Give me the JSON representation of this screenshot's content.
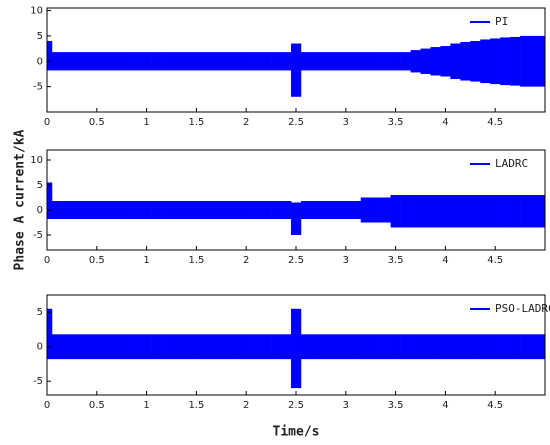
{
  "chart_data": [
    {
      "type": "band",
      "legend": "upper right",
      "x": [
        0,
        0.1,
        0.2,
        0.3,
        0.4,
        0.5,
        0.6,
        0.7,
        0.8,
        0.9,
        1,
        1.1,
        1.2,
        1.3,
        1.4,
        1.5,
        1.6,
        1.7,
        1.8,
        1.9,
        2,
        2.1,
        2.2,
        2.3,
        2.4,
        2.5,
        2.6,
        2.7,
        2.8,
        2.9,
        3,
        3.1,
        3.2,
        3.3,
        3.4,
        3.5,
        3.6,
        3.7,
        3.8,
        3.9,
        4,
        4.1,
        4.2,
        4.3,
        4.4,
        4.5,
        4.6,
        4.7,
        4.8,
        4.9,
        5
      ],
      "series": [
        {
          "name": "PI",
          "color": "#0000ff",
          "values": [
            4,
            1.8,
            1.8,
            1.8,
            1.8,
            1.8,
            1.8,
            1.8,
            1.8,
            1.8,
            1.8,
            1.8,
            1.8,
            1.8,
            1.8,
            1.8,
            1.8,
            1.8,
            1.8,
            1.8,
            1.8,
            1.8,
            1.8,
            1.8,
            1.8,
            3.5,
            1.8,
            1.8,
            1.8,
            1.8,
            1.8,
            1.8,
            1.8,
            1.8,
            1.8,
            1.8,
            1.8,
            2.2,
            2.5,
            2.8,
            3,
            3.5,
            3.8,
            4,
            4.3,
            4.5,
            4.7,
            4.8,
            5,
            5,
            5
          ],
          "lower": [
            -1.8,
            -1.8,
            -1.8,
            -1.8,
            -1.8,
            -1.8,
            -1.8,
            -1.8,
            -1.8,
            -1.8,
            -1.8,
            -1.8,
            -1.8,
            -1.8,
            -1.8,
            -1.8,
            -1.8,
            -1.8,
            -1.8,
            -1.8,
            -1.8,
            -1.8,
            -1.8,
            -1.8,
            -1.8,
            -7,
            -1.8,
            -1.8,
            -1.8,
            -1.8,
            -1.8,
            -1.8,
            -1.8,
            -1.8,
            -1.8,
            -1.8,
            -1.8,
            -2.2,
            -2.5,
            -2.8,
            -3,
            -3.5,
            -3.8,
            -4,
            -4.3,
            -4.5,
            -4.7,
            -4.8,
            -5,
            -5,
            -5
          ]
        }
      ],
      "xlim": [
        0,
        5
      ],
      "xticks": [
        0,
        0.5,
        1,
        1.5,
        2,
        2.5,
        3,
        3.5,
        4,
        4.5
      ],
      "ylim": [
        -10,
        10.5
      ],
      "yticks": [
        -5,
        0,
        5,
        10
      ]
    },
    {
      "type": "band",
      "legend": "upper right",
      "x": [
        0,
        0.1,
        0.2,
        0.3,
        0.4,
        0.5,
        0.6,
        0.7,
        0.8,
        0.9,
        1,
        1.1,
        1.2,
        1.3,
        1.4,
        1.5,
        1.6,
        1.7,
        1.8,
        1.9,
        2,
        2.1,
        2.2,
        2.3,
        2.4,
        2.5,
        2.6,
        2.7,
        2.8,
        2.9,
        3,
        3.1,
        3.2,
        3.3,
        3.4,
        3.5,
        3.6,
        3.7,
        3.8,
        3.9,
        4,
        4.1,
        4.2,
        4.3,
        4.4,
        4.5,
        4.6,
        4.7,
        4.8,
        4.9,
        5
      ],
      "series": [
        {
          "name": "LADRC",
          "color": "#0000ff",
          "values": [
            5.5,
            1.8,
            1.8,
            1.8,
            1.8,
            1.8,
            1.8,
            1.8,
            1.8,
            1.8,
            1.8,
            1.8,
            1.8,
            1.8,
            1.8,
            1.8,
            1.8,
            1.8,
            1.8,
            1.8,
            1.8,
            1.8,
            1.8,
            1.8,
            1.8,
            1.5,
            1.8,
            1.8,
            1.8,
            1.8,
            1.8,
            1.8,
            2.5,
            2.5,
            2.5,
            3,
            3,
            3,
            3,
            3,
            3,
            3,
            3,
            3,
            3,
            3,
            3,
            3,
            3,
            3,
            3
          ],
          "lower": [
            -1.8,
            -1.8,
            -1.8,
            -1.8,
            -1.8,
            -1.8,
            -1.8,
            -1.8,
            -1.8,
            -1.8,
            -1.8,
            -1.8,
            -1.8,
            -1.8,
            -1.8,
            -1.8,
            -1.8,
            -1.8,
            -1.8,
            -1.8,
            -1.8,
            -1.8,
            -1.8,
            -1.8,
            -1.8,
            -5,
            -1.8,
            -1.8,
            -1.8,
            -1.8,
            -1.8,
            -1.8,
            -2.5,
            -2.5,
            -2.5,
            -3.5,
            -3.5,
            -3.5,
            -3.5,
            -3.5,
            -3.5,
            -3.5,
            -3.5,
            -3.5,
            -3.5,
            -3.5,
            -3.5,
            -3.5,
            -3.5,
            -3.5,
            -3.5
          ]
        }
      ],
      "xlim": [
        0,
        5
      ],
      "xticks": [
        0,
        0.5,
        1,
        1.5,
        2,
        2.5,
        3,
        3.5,
        4,
        4.5
      ],
      "ylim": [
        -8,
        12
      ],
      "yticks": [
        -5,
        0,
        5,
        10
      ]
    },
    {
      "type": "band",
      "legend": "upper right",
      "x": [
        0,
        0.1,
        0.2,
        0.3,
        0.4,
        0.5,
        0.6,
        0.7,
        0.8,
        0.9,
        1,
        1.1,
        1.2,
        1.3,
        1.4,
        1.5,
        1.6,
        1.7,
        1.8,
        1.9,
        2,
        2.1,
        2.2,
        2.3,
        2.4,
        2.5,
        2.6,
        2.7,
        2.8,
        2.9,
        3,
        3.1,
        3.2,
        3.3,
        3.4,
        3.5,
        3.6,
        3.7,
        3.8,
        3.9,
        4,
        4.1,
        4.2,
        4.3,
        4.4,
        4.5,
        4.6,
        4.7,
        4.8,
        4.9,
        5
      ],
      "series": [
        {
          "name": "PSO-LADRC",
          "color": "#0000ff",
          "values": [
            5.5,
            1.8,
            1.8,
            1.8,
            1.8,
            1.8,
            1.8,
            1.8,
            1.8,
            1.8,
            1.8,
            1.8,
            1.8,
            1.8,
            1.8,
            1.8,
            1.8,
            1.8,
            1.8,
            1.8,
            1.8,
            1.8,
            1.8,
            1.8,
            1.8,
            5.5,
            1.8,
            1.8,
            1.8,
            1.8,
            1.8,
            1.8,
            1.8,
            1.8,
            1.8,
            1.8,
            1.8,
            1.8,
            1.8,
            1.8,
            1.8,
            1.8,
            1.8,
            1.8,
            1.8,
            1.8,
            1.8,
            1.8,
            1.8,
            1.8,
            1.8
          ],
          "lower": [
            -1.8,
            -1.8,
            -1.8,
            -1.8,
            -1.8,
            -1.8,
            -1.8,
            -1.8,
            -1.8,
            -1.8,
            -1.8,
            -1.8,
            -1.8,
            -1.8,
            -1.8,
            -1.8,
            -1.8,
            -1.8,
            -1.8,
            -1.8,
            -1.8,
            -1.8,
            -1.8,
            -1.8,
            -1.8,
            -6,
            -1.8,
            -1.8,
            -1.8,
            -1.8,
            -1.8,
            -1.8,
            -1.8,
            -1.8,
            -1.8,
            -1.8,
            -1.8,
            -1.8,
            -1.8,
            -1.8,
            -1.8,
            -1.8,
            -1.8,
            -1.8,
            -1.8,
            -1.8,
            -1.8,
            -1.8,
            -1.8,
            -1.8,
            -1.8
          ]
        }
      ],
      "xlim": [
        0,
        5
      ],
      "xticks": [
        0,
        0.5,
        1,
        1.5,
        2,
        2.5,
        3,
        3.5,
        4,
        4.5
      ],
      "ylim": [
        -7,
        7.5
      ],
      "yticks": [
        -5,
        0,
        5
      ]
    }
  ],
  "ylabel": "Phase A current/kA",
  "xlabel": "Time/s"
}
